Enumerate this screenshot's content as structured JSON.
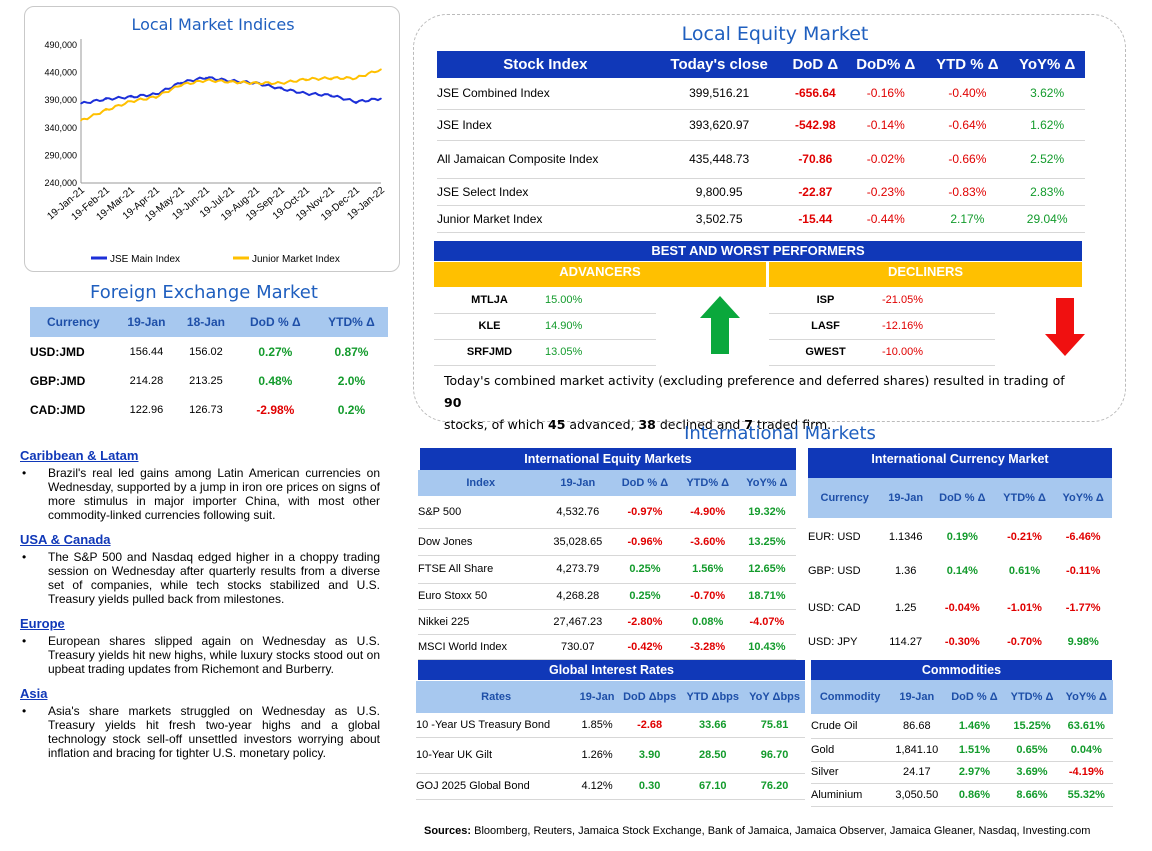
{
  "chart": {
    "title": "Local Market Indices",
    "legend": [
      "JSE Main Index",
      "Junior Market Index"
    ],
    "colors": {
      "main": "#1c2fd8",
      "junior": "#ffc000"
    }
  },
  "chart_data": {
    "type": "line",
    "title": "Local Market Indices",
    "x": [
      "19-Jan-21",
      "19-Feb-21",
      "19-Mar-21",
      "19-Apr-21",
      "19-May-21",
      "19-Jun-21",
      "19-Jul-21",
      "19-Aug-21",
      "19-Sep-21",
      "19-Oct-21",
      "19-Nov-21",
      "19-Dec-21",
      "19-Jan-22"
    ],
    "ylim": [
      240000,
      490000
    ],
    "yticks": [
      "490,000",
      "440,000",
      "390,000",
      "340,000",
      "290,000",
      "240,000"
    ],
    "series": [
      {
        "name": "JSE Main Index",
        "values": [
          384000,
          392000,
          396000,
          401000,
          422000,
          431000,
          425000,
          421000,
          411000,
          402000,
          399000,
          387000,
          393000
        ]
      },
      {
        "name": "Junior Market Index",
        "values": [
          353000,
          372000,
          388000,
          396000,
          418000,
          426000,
          423000,
          421000,
          421000,
          428000,
          430000,
          430000,
          446000
        ]
      }
    ]
  },
  "fx": {
    "title": "Foreign Exchange Market",
    "headers": [
      "Currency",
      "19-Jan",
      "18-Jan",
      "DoD % Δ",
      "YTD% Δ"
    ],
    "rows": [
      [
        "USD:JMD",
        "156.44",
        "156.02",
        "0.27%",
        "0.87%"
      ],
      [
        "GBP:JMD",
        "214.28",
        "213.25",
        "0.48%",
        "2.0%"
      ],
      [
        "CAD:JMD",
        "122.96",
        "126.73",
        "-2.98%",
        "0.2%"
      ]
    ]
  },
  "news": [
    {
      "heading": "Caribbean & Latam",
      "text": "Brazil's real led gains among Latin American currencies on Wednesday, supported by a jump in iron ore prices on signs of more stimulus in major importer China, with most other commodity-linked currencies following suit."
    },
    {
      "heading": "USA & Canada",
      "text": "The S&P 500 and Nasdaq edged higher in a choppy trading session on Wednesday after quarterly results from a diverse set of companies, while tech stocks stabilized and U.S. Treasury yields pulled back from milestones."
    },
    {
      "heading": "Europe",
      "text": "European shares slipped again on Wednesday as U.S. Treasury yields hit new highs, while luxury stocks stood out on upbeat trading updates from Richemont and Burberry."
    },
    {
      "heading": "Asia",
      "text": "Asia's share markets struggled on Wednesday as U.S. Treasury yields hit fresh two-year highs and a global technology stock sell-off unsettled investors worrying about inflation and bracing for tighter U.S. monetary policy."
    }
  ],
  "equity": {
    "title": "Local Equity Market",
    "headers": [
      "Stock Index",
      "Today's close",
      "DoD  Δ",
      "DoD% Δ",
      "YTD % Δ",
      "YoY% Δ"
    ],
    "rows": [
      [
        "JSE Combined Index",
        "399,516.21",
        "-656.64",
        "-0.16%",
        "-0.40%",
        "3.62%"
      ],
      [
        "JSE Index",
        "393,620.97",
        "-542.98",
        "-0.14%",
        "-0.64%",
        "1.62%"
      ],
      [
        "All Jamaican Composite Index",
        "435,448.73",
        "-70.86",
        "-0.02%",
        "-0.66%",
        "2.52%"
      ],
      [
        "JSE Select Index",
        "9,800.95",
        "-22.87",
        "-0.23%",
        "-0.83%",
        "2.83%"
      ],
      [
        "Junior Market Index",
        "3,502.75",
        "-15.44",
        "-0.44%",
        "2.17%",
        "29.04%"
      ]
    ]
  },
  "performers": {
    "title": "BEST AND WORST PERFORMERS",
    "advancers_label": "ADVANCERS",
    "decliners_label": "DECLINERS",
    "advancers": [
      [
        "MTLJA",
        "15.00%"
      ],
      [
        "KLE",
        "14.90%"
      ],
      [
        "SRFJMD",
        "13.05%"
      ]
    ],
    "decliners": [
      [
        "ISP",
        "-21.05%"
      ],
      [
        "LASF",
        "-12.16%"
      ],
      [
        "GWEST",
        "-10.00%"
      ]
    ],
    "summary_a": "Today's combined market activity (excluding preference and deferred shares) resulted in trading of ",
    "summary_total": "90",
    "summary_b": "stocks, of which ",
    "summary_adv": "45",
    "summary_c": " advanced, ",
    "summary_dec": "38",
    "summary_d": " declined and ",
    "summary_firm": "7",
    "summary_e": " traded firm."
  },
  "intl": {
    "title": "International Markets",
    "equity": {
      "title": "International Equity Markets",
      "headers": [
        "Index",
        "19-Jan",
        "DoD % Δ",
        "YTD% Δ",
        "YoY% Δ"
      ],
      "rows": [
        [
          "S&P 500",
          "4,532.76",
          "-0.97%",
          "-4.90%",
          "19.32%"
        ],
        [
          "Dow Jones",
          "35,028.65",
          "-0.96%",
          "-3.60%",
          "13.25%"
        ],
        [
          "FTSE All Share",
          "4,273.79",
          "0.25%",
          "1.56%",
          "12.65%"
        ],
        [
          "Euro Stoxx 50",
          "4,268.28",
          "0.25%",
          "-0.70%",
          "18.71%"
        ],
        [
          "Nikkei 225",
          "27,467.23",
          "-2.80%",
          "0.08%",
          "-4.07%"
        ],
        [
          "MSCI World Index",
          "730.07",
          "-0.42%",
          "-3.28%",
          "10.43%"
        ]
      ]
    },
    "currency": {
      "title": "International Currency Market",
      "headers": [
        "Currency",
        "19-Jan",
        "DoD % Δ",
        "YTD% Δ",
        "YoY% Δ"
      ],
      "rows": [
        [
          "EUR: USD",
          "1.1346",
          "0.19%",
          "-0.21%",
          "-6.46%"
        ],
        [
          "GBP: USD",
          "1.36",
          "0.14%",
          "0.61%",
          "-0.11%"
        ],
        [
          "USD: CAD",
          "1.25",
          "-0.04%",
          "-1.01%",
          "-1.77%"
        ],
        [
          "USD: JPY",
          "114.27",
          "-0.30%",
          "-0.70%",
          "9.98%"
        ]
      ]
    },
    "rates": {
      "title": "Global Interest Rates",
      "headers": [
        "Rates",
        "19-Jan",
        "DoD Δbps",
        "YTD Δbps",
        "YoY Δbps"
      ],
      "rows": [
        [
          "10 -Year US Treasury Bond",
          "1.85%",
          "-2.68",
          "33.66",
          "75.81"
        ],
        [
          "10-Year UK Gilt",
          "1.26%",
          "3.90",
          "28.50",
          "96.70"
        ],
        [
          "GOJ 2025 Global Bond",
          "4.12%",
          "0.30",
          "67.10",
          "76.20"
        ]
      ]
    },
    "commodities": {
      "title": "Commodities",
      "headers": [
        "Commodity",
        "19-Jan",
        "DoD % Δ",
        "YTD% Δ",
        "YoY% Δ"
      ],
      "rows": [
        [
          "Crude Oil",
          "86.68",
          "1.46%",
          "15.25%",
          "63.61%"
        ],
        [
          "Gold",
          "1,841.10",
          "1.51%",
          "0.65%",
          "0.04%"
        ],
        [
          "Silver",
          "24.17",
          "2.97%",
          "3.69%",
          "-4.19%"
        ],
        [
          "Aluminium",
          "3,050.50",
          "0.86%",
          "8.66%",
          "55.32%"
        ]
      ]
    }
  },
  "sources": {
    "label": "Sources:",
    "text": " Bloomberg, Reuters, Jamaica Stock Exchange, Bank of Jamaica, Jamaica Observer, Jamaica Gleaner, Nasdaq, Investing.com"
  }
}
